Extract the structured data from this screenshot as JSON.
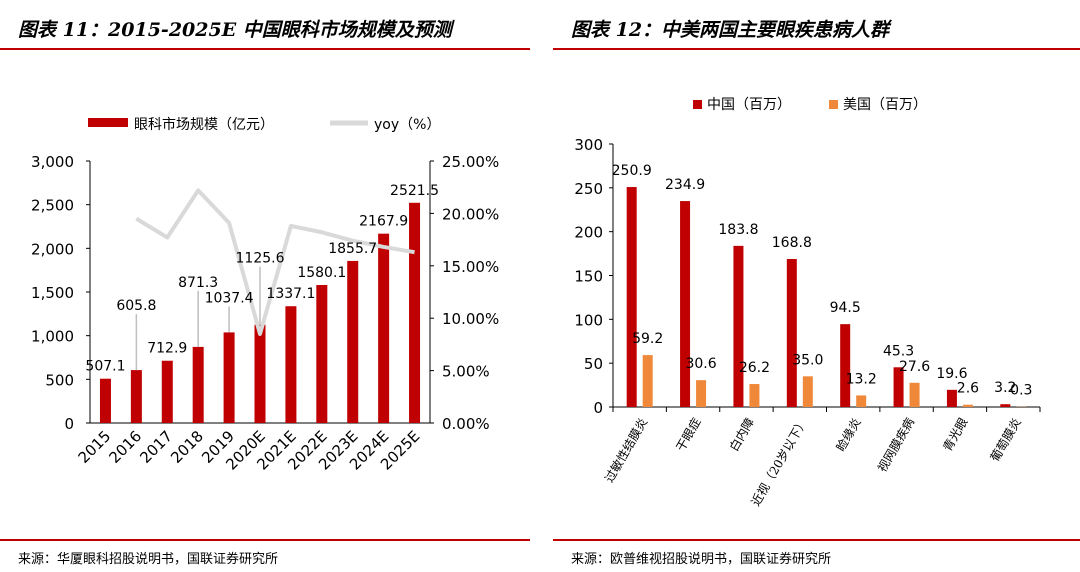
{
  "panels": {
    "left": {
      "title": "图表 11：2015-2025E 中国眼科市场规模及预测",
      "source": "来源：华厦眼科招股说明书，国联证券研究所"
    },
    "right": {
      "title": "图表 12：中美两国主要眼疾患病人群",
      "source": "来源：欧普维视招股说明书，国联证券研究所"
    }
  },
  "colors": {
    "accent_red": "#c00000",
    "bar_red": "#c00000",
    "bar_orange": "#f0883a",
    "line_gray": "#d9d9d9"
  },
  "chart_data": [
    {
      "type": "bar",
      "categories": [
        "2015",
        "2016",
        "2017",
        "2018",
        "2019",
        "2020E",
        "2021E",
        "2022E",
        "2023E",
        "2024E",
        "2025E"
      ],
      "series": [
        {
          "name": "眼科市场规模（亿元）",
          "axis": "left",
          "type": "bar",
          "values": [
            507.1,
            605.8,
            712.9,
            871.3,
            1037.4,
            1125.6,
            1337.1,
            1580.1,
            1855.7,
            2167.9,
            2521.5
          ],
          "labels": [
            "507.1",
            "605.8",
            "712.9",
            "871.3",
            "1037.4",
            "1125.6",
            "1337.1",
            "1580.1",
            "1855.7",
            "2167.9",
            "2521.5"
          ]
        },
        {
          "name": "yoy（%）",
          "axis": "right",
          "type": "line",
          "values": [
            null,
            19.5,
            17.7,
            22.2,
            19.1,
            8.5,
            18.8,
            18.2,
            17.4,
            16.8,
            16.3
          ]
        }
      ],
      "ylim": [
        0,
        3000
      ],
      "yticks": [
        "0",
        "500",
        "1,000",
        "1,500",
        "2,000",
        "2,500",
        "3,000"
      ],
      "ylim_right": [
        0,
        25
      ],
      "yticks_right": [
        "0.00%",
        "5.00%",
        "10.00%",
        "15.00%",
        "20.00%",
        "25.00%"
      ],
      "legend": "top",
      "grid": false
    },
    {
      "type": "bar",
      "categories": [
        "过敏性结膜炎",
        "干眼症",
        "白内障",
        "近视（20岁以下）",
        "睑缘炎",
        "视网膜疾病",
        "青光眼",
        "葡萄膜炎"
      ],
      "series": [
        {
          "name": "中国（百万）",
          "values": [
            250.9,
            234.9,
            183.8,
            168.8,
            94.5,
            45.3,
            19.6,
            3.2
          ],
          "labels": [
            "250.9",
            "234.9",
            "183.8",
            "168.8",
            "94.5",
            "45.3",
            "19.6",
            "3.2"
          ]
        },
        {
          "name": "美国（百万）",
          "values": [
            59.2,
            30.6,
            26.2,
            35.0,
            13.2,
            27.6,
            2.6,
            0.3
          ],
          "labels": [
            "59.2",
            "30.6",
            "26.2",
            "35.0",
            "13.2",
            "27.6",
            "2.6",
            "0.3"
          ]
        }
      ],
      "ylim": [
        0,
        300
      ],
      "yticks": [
        "0",
        "50",
        "100",
        "150",
        "200",
        "250",
        "300"
      ],
      "legend": "top",
      "grid": false
    }
  ]
}
